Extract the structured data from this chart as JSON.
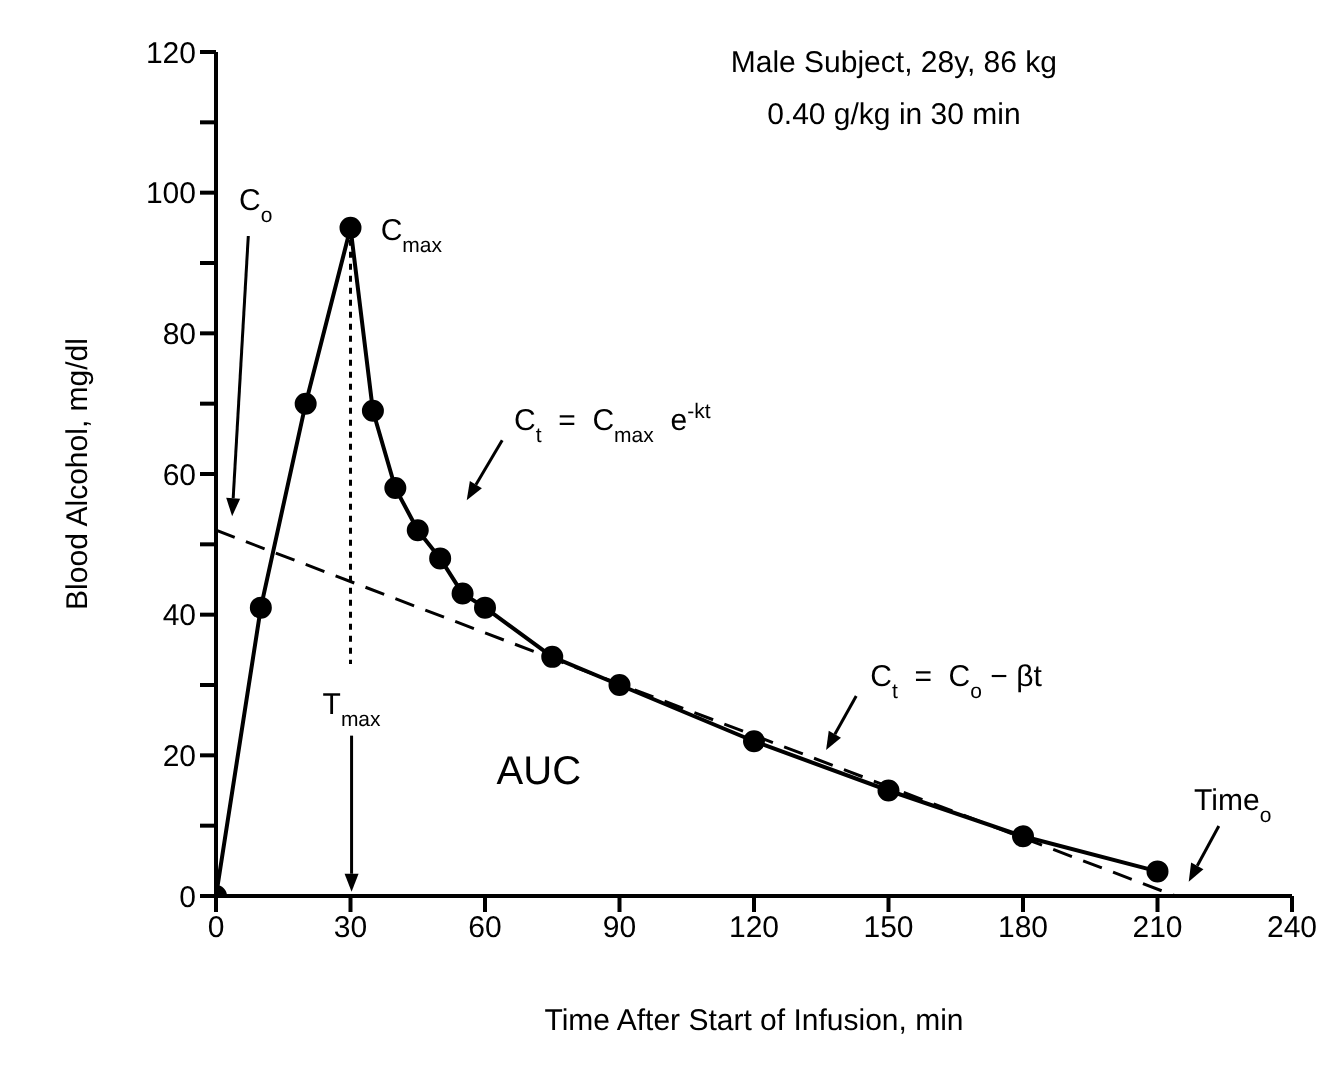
{
  "chart_data": {
    "type": "line",
    "title": "Male Subject, 28y, 86 kg",
    "subtitle": "0.40 g/kg in 30 min",
    "xlabel": "Time After Start of Infusion, min",
    "ylabel": "Blood Alcohol, mg/dl",
    "xlim": [
      0,
      240
    ],
    "xticks": [
      0,
      30,
      60,
      90,
      120,
      150,
      180,
      210,
      240
    ],
    "ylim": [
      0,
      120
    ],
    "yticks": [
      0,
      {
        "value": 10,
        "label": null
      },
      20,
      {
        "value": 30,
        "label": null
      },
      40,
      {
        "value": 50,
        "label": null
      },
      60,
      {
        "value": 70,
        "label": null
      },
      80,
      {
        "value": 90,
        "label": null
      },
      100,
      {
        "value": 110,
        "label": null
      },
      120
    ],
    "series": [
      {
        "color": "#000000",
        "marker": "circle",
        "line_style": "solid",
        "x": [
          0,
          10,
          20,
          30,
          35,
          40,
          45,
          50,
          55,
          60,
          75,
          90,
          120,
          150,
          180,
          210
        ],
        "values": [
          0,
          41,
          70,
          95,
          69,
          58,
          52,
          48,
          43,
          41,
          34,
          30,
          22,
          15,
          8.5,
          3.5
        ]
      },
      {
        "color": "#000000",
        "marker": "none",
        "line_style": "dashed",
        "x": [
          0,
          214
        ],
        "values": [
          52,
          0
        ]
      },
      {
        "color": "#000000",
        "marker": "none",
        "line_style": "dotted",
        "x": [
          30,
          30
        ],
        "values": [
          95,
          33
        ]
      }
    ],
    "annotations": [
      "C$_{o}$",
      "C$_{max}$",
      "C$_{t}$  =  C$_{max}$  e$^{-kt}$",
      "C$_{t}$  =  C$_{o}$  −  βt",
      "T$_{max}$",
      "Time$_{o}$",
      "AUC"
    ]
  }
}
